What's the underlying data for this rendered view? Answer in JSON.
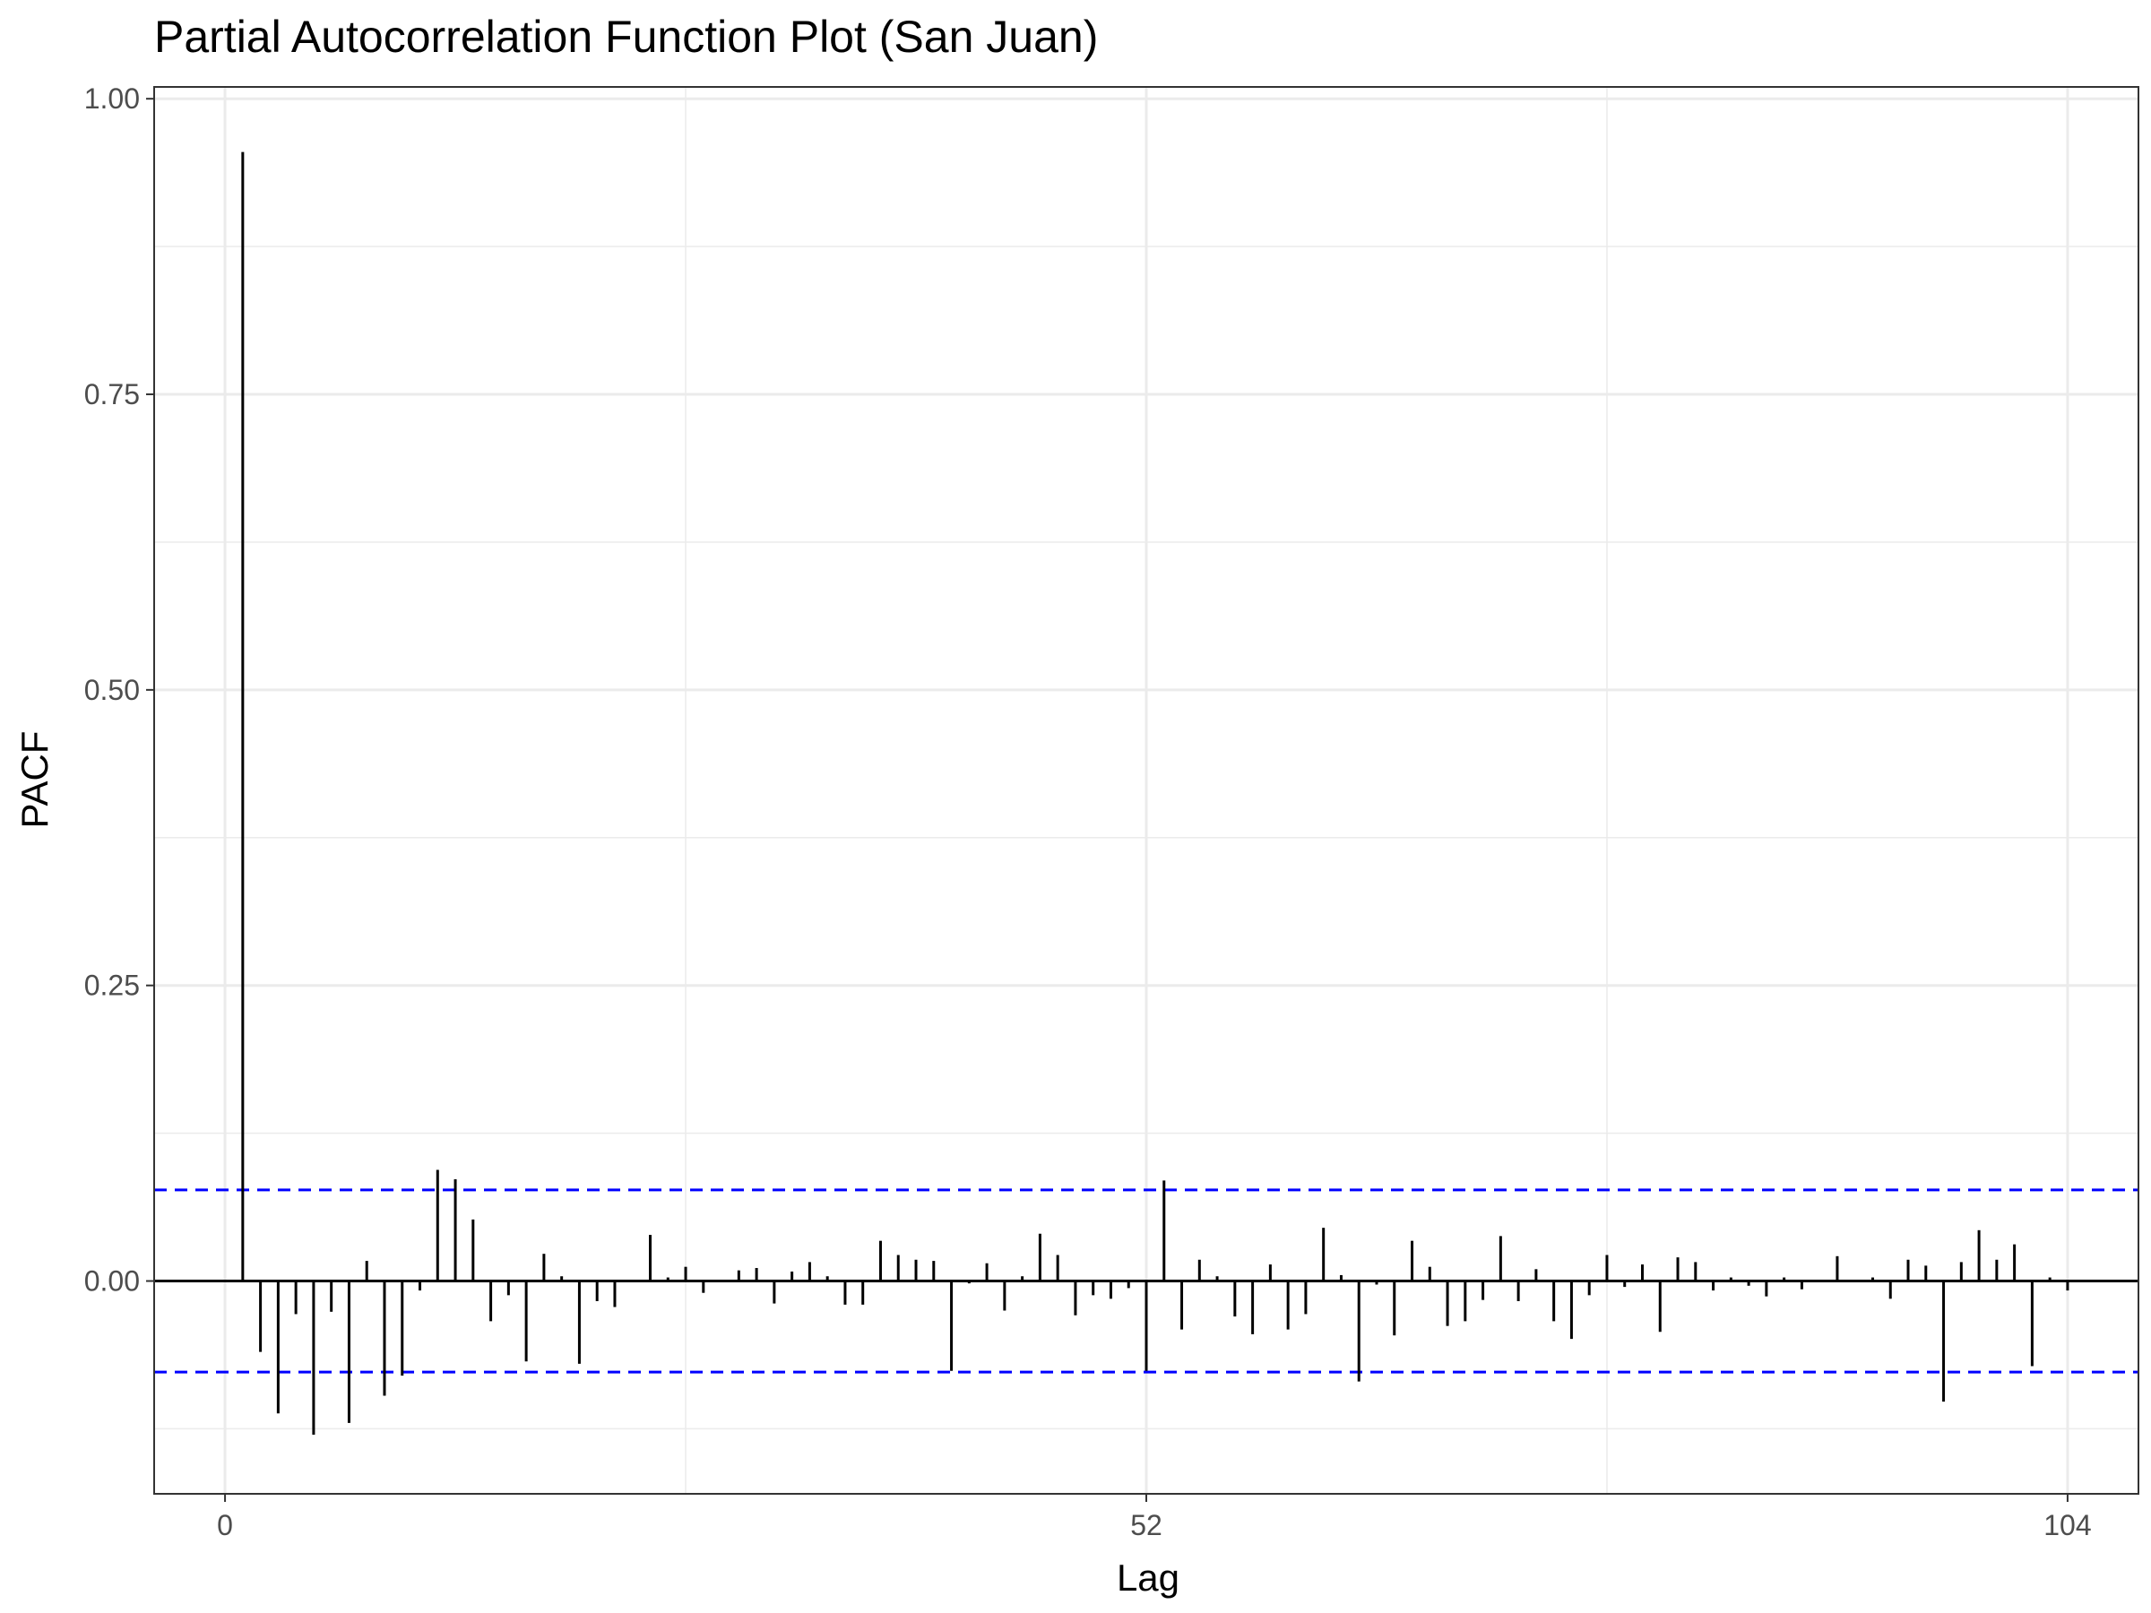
{
  "chart_data": {
    "type": "bar",
    "title": "Partial Autocorrelation Function Plot (San Juan)",
    "xlabel": "Lag",
    "ylabel": "PACF",
    "xlim": [
      -4,
      108
    ],
    "ylim": [
      -0.18,
      1.01
    ],
    "x_ticks": [
      0,
      52,
      104
    ],
    "x_tick_labels": [
      "0",
      "52",
      "104"
    ],
    "y_ticks": [
      0,
      0.25,
      0.5,
      0.75,
      1.0
    ],
    "y_tick_labels": [
      "0.00",
      "0.25",
      "0.50",
      "0.75",
      "1.00"
    ],
    "confidence_bound": 0.077,
    "grid": true,
    "colors": {
      "bars": "#000000",
      "bounds": "#0000ff",
      "grid": "#ebebeb"
    },
    "lags": [
      1,
      2,
      3,
      4,
      5,
      6,
      7,
      8,
      9,
      10,
      11,
      12,
      13,
      14,
      15,
      16,
      17,
      18,
      19,
      20,
      21,
      22,
      23,
      24,
      25,
      26,
      27,
      28,
      29,
      30,
      31,
      32,
      33,
      34,
      35,
      36,
      37,
      38,
      39,
      40,
      41,
      42,
      43,
      44,
      45,
      46,
      47,
      48,
      49,
      50,
      51,
      52,
      53,
      54,
      55,
      56,
      57,
      58,
      59,
      60,
      61,
      62,
      63,
      64,
      65,
      66,
      67,
      68,
      69,
      70,
      71,
      72,
      73,
      74,
      75,
      76,
      77,
      78,
      79,
      80,
      81,
      82,
      83,
      84,
      85,
      86,
      87,
      88,
      89,
      90,
      91,
      92,
      93,
      94,
      95,
      96,
      97,
      98,
      99,
      100,
      101,
      102,
      103,
      104
    ],
    "values": [
      0.955,
      -0.06,
      -0.112,
      -0.028,
      -0.13,
      -0.026,
      -0.12,
      0.017,
      -0.097,
      -0.08,
      -0.008,
      0.094,
      0.086,
      0.052,
      -0.034,
      -0.012,
      -0.068,
      0.023,
      0.004,
      -0.07,
      -0.017,
      -0.022,
      0.0,
      0.039,
      0.003,
      0.012,
      -0.01,
      0.0,
      0.009,
      0.011,
      -0.019,
      0.008,
      0.016,
      0.004,
      -0.02,
      -0.02,
      0.034,
      0.022,
      0.018,
      0.017,
      -0.076,
      -0.002,
      0.015,
      -0.025,
      0.004,
      0.04,
      0.022,
      -0.029,
      -0.012,
      -0.015,
      -0.006,
      -0.076,
      0.085,
      -0.041,
      0.018,
      0.004,
      -0.03,
      -0.045,
      0.014,
      -0.041,
      -0.028,
      0.045,
      0.005,
      -0.085,
      -0.003,
      -0.046,
      0.034,
      0.012,
      -0.038,
      -0.034,
      -0.016,
      0.038,
      -0.017,
      0.01,
      -0.034,
      -0.049,
      -0.012,
      0.022,
      -0.005,
      0.014,
      -0.043,
      0.02,
      0.016,
      -0.008,
      0.003,
      -0.004,
      -0.013,
      0.003,
      -0.007,
      0.0,
      0.021,
      0.0,
      0.003,
      -0.015,
      0.018,
      0.013,
      -0.102,
      0.016,
      0.043,
      0.018,
      0.031,
      -0.072,
      0.003,
      -0.008
    ]
  }
}
